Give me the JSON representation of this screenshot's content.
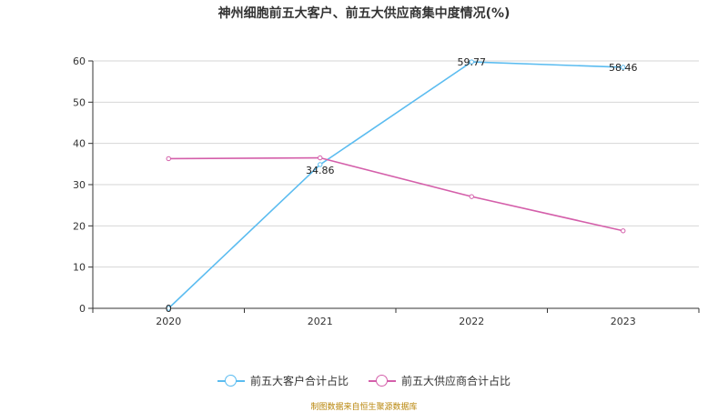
{
  "title": "神州细胞前五大客户、前五大供应商集中度情况(%)",
  "source": "制图数据来自恒生聚源数据库",
  "chart_data": {
    "type": "line",
    "title": "神州细胞前五大客户、前五大供应商集中度情况(%)",
    "categories": [
      "2020",
      "2021",
      "2022",
      "2023"
    ],
    "ylim": [
      0,
      60
    ],
    "yticks": [
      "0",
      "10",
      "20",
      "30",
      "40",
      "50",
      "60"
    ],
    "grid": true,
    "legend_position": "bottom",
    "series": [
      {
        "name": "前五大客户合计占比",
        "values": [
          0,
          34.86,
          59.77,
          58.46
        ],
        "labels": [
          "0",
          "34.86",
          "59.77",
          "58.46"
        ],
        "color": "#5bbcf0"
      },
      {
        "name": "前五大供应商合计占比",
        "values": [
          36.3,
          36.5,
          27.1,
          18.8
        ],
        "labels": [],
        "color": "#d45faa"
      }
    ]
  }
}
